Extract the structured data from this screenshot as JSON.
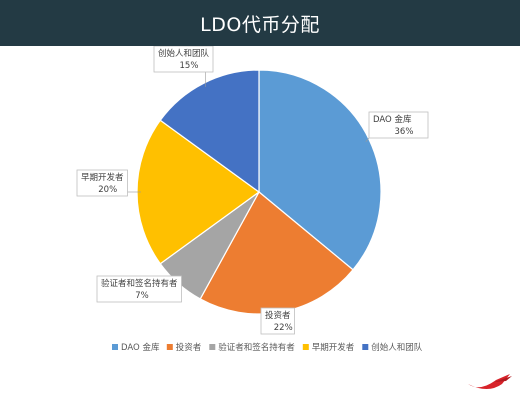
{
  "header": {
    "title": "LDO代币分配"
  },
  "chart_data": {
    "type": "pie",
    "title": "LDO代币分配",
    "slices": [
      {
        "label": "DAO 金库",
        "value": 36,
        "value_label": "36%",
        "color": "#5b9bd5"
      },
      {
        "label": "投资者",
        "value": 22,
        "value_label": "22%",
        "color": "#ed7d31"
      },
      {
        "label": "验证者和签名持有者",
        "value": 7,
        "value_label": "7%",
        "color": "#a5a5a5"
      },
      {
        "label": "早期开发者",
        "value": 20,
        "value_label": "20%",
        "color": "#ffc000"
      },
      {
        "label": "创始人和团队",
        "value": 15,
        "value_label": "15%",
        "color": "#4472c4"
      }
    ],
    "start": "top, clockwise",
    "legend_position": "bottom"
  }
}
